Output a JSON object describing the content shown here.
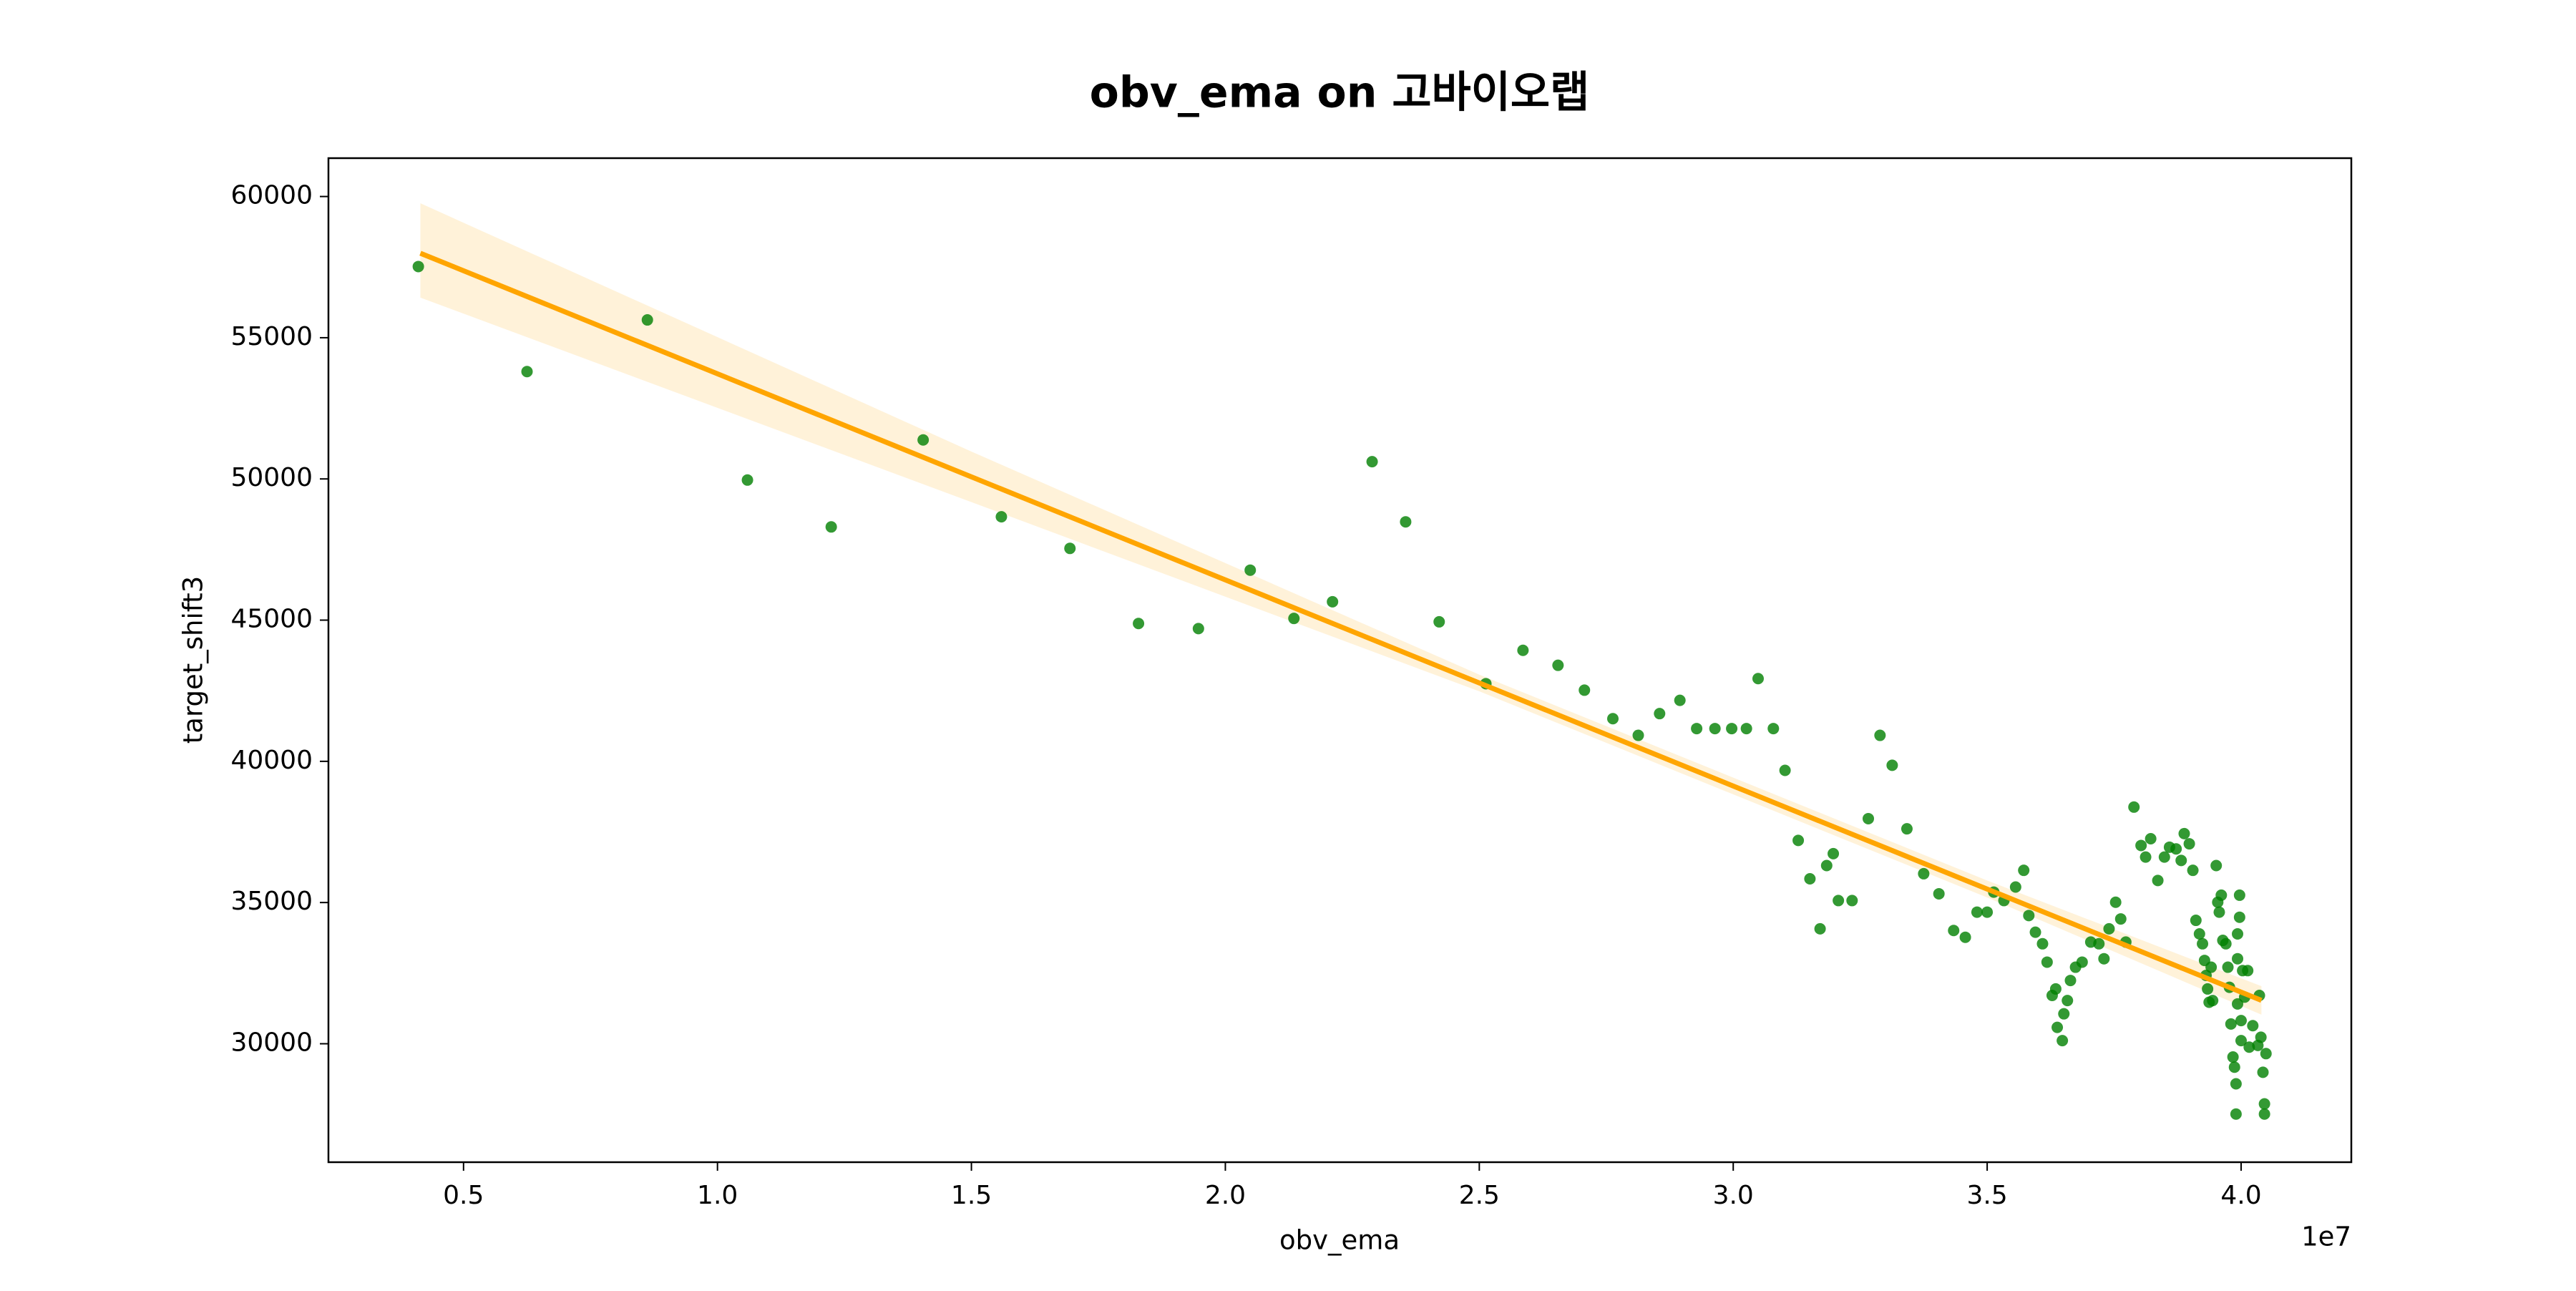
{
  "chart_data": {
    "type": "scatter",
    "title": "obv_ema on 고바이오랩",
    "x_label": "obv_ema",
    "y_label": "target_shift3",
    "x_offset_label": "1e7",
    "xlim": [
      0.234,
      4.217
    ],
    "ylim": [
      25806,
      61358
    ],
    "xticks": [
      0.5,
      {
        "value": 1.0,
        "label": "1.0"
      },
      1.5,
      {
        "value": 2.0,
        "label": "2.0"
      },
      2.5,
      {
        "value": 3.0,
        "label": "3.0"
      },
      3.5,
      {
        "value": 4.0,
        "label": "4.0"
      }
    ],
    "yticks": [
      30000,
      35000,
      40000,
      45000,
      50000,
      55000,
      60000
    ],
    "grid": false,
    "color": "#008000",
    "x": [
      0.411,
      0.625,
      0.862,
      1.059,
      1.224,
      1.405,
      1.559,
      1.694,
      1.829,
      1.947,
      2.049,
      2.135,
      2.211,
      2.289,
      2.355,
      2.421,
      2.513,
      2.586,
      2.655,
      2.707,
      2.763,
      2.813,
      2.855,
      2.895,
      2.928,
      2.964,
      2.997,
      3.026,
      3.049,
      3.079,
      3.102,
      3.128,
      3.151,
      3.171,
      3.184,
      3.197,
      3.207,
      3.234,
      3.266,
      3.289,
      3.313,
      3.342,
      3.375,
      3.405,
      3.434,
      3.457,
      3.48,
      3.5,
      3.513,
      3.533,
      3.556,
      3.572,
      3.582,
      3.595,
      3.609,
      3.618,
      3.628,
      3.635,
      3.638,
      3.648,
      3.651,
      3.658,
      3.664,
      3.674,
      3.687,
      3.704,
      3.72,
      3.73,
      3.74,
      3.753,
      3.763,
      3.773,
      3.789,
      3.803,
      3.812,
      3.822,
      3.836,
      3.849,
      3.859,
      3.872,
      3.882,
      3.888,
      3.898,
      3.905,
      3.911,
      3.918,
      3.924,
      3.928,
      3.931,
      3.934,
      3.937,
      3.941,
      3.944,
      3.951,
      3.954,
      3.957,
      3.961,
      3.964,
      3.97,
      3.974,
      3.977,
      3.98,
      3.984,
      3.987,
      3.99,
      3.99,
      3.993,
      3.993,
      3.993,
      3.997,
      3.997,
      4.0,
      4.0,
      4.003,
      4.007,
      4.013,
      4.016,
      4.023,
      4.033,
      4.039,
      4.043,
      4.046,
      4.046,
      4.049,
      4.036
    ],
    "values": [
      57520,
      53800,
      55630,
      49960,
      48300,
      51380,
      48660,
      47540,
      44880,
      44700,
      46770,
      45060,
      45650,
      50610,
      48480,
      44940,
      42750,
      43930,
      43400,
      42520,
      41510,
      40920,
      41690,
      42160,
      41160,
      41160,
      41160,
      41160,
      42930,
      41160,
      39680,
      37200,
      35840,
      34070,
      36310,
      36730,
      35070,
      35070,
      37970,
      40920,
      39860,
      37610,
      36020,
      35310,
      34010,
      33770,
      34660,
      34660,
      35370,
      35070,
      35550,
      36140,
      34540,
      33950,
      33540,
      32890,
      31710,
      31940,
      30580,
      30110,
      31060,
      31530,
      32240,
      32710,
      32890,
      33600,
      33540,
      33010,
      34070,
      35010,
      34420,
      33600,
      38380,
      37020,
      36610,
      37260,
      35780,
      36610,
      36960,
      36900,
      36490,
      37440,
      37080,
      36140,
      34370,
      33890,
      33540,
      32950,
      32420,
      31940,
      31470,
      32710,
      31530,
      36310,
      35010,
      34660,
      35260,
      33660,
      33540,
      32710,
      32000,
      30700,
      29530,
      29170,
      28580,
      27510,
      31410,
      33010,
      33890,
      34480,
      35260,
      30820,
      30110,
      32590,
      31650,
      32590,
      29880,
      30640,
      29940,
      30230,
      28990,
      27510,
      27870,
      29650,
      31710
    ],
    "regression": {
      "color": "#ffa500",
      "x": [
        0.415,
        4.04
      ],
      "values": [
        57992,
        31536
      ],
      "ci_x": [
        0.415,
        1.5,
        2.5,
        3.5,
        4.04
      ],
      "ci_lower": [
        56420,
        49180,
        42480,
        35180,
        31030
      ],
      "ci_upper": [
        59760,
        50970,
        43070,
        35780,
        32040
      ]
    }
  }
}
